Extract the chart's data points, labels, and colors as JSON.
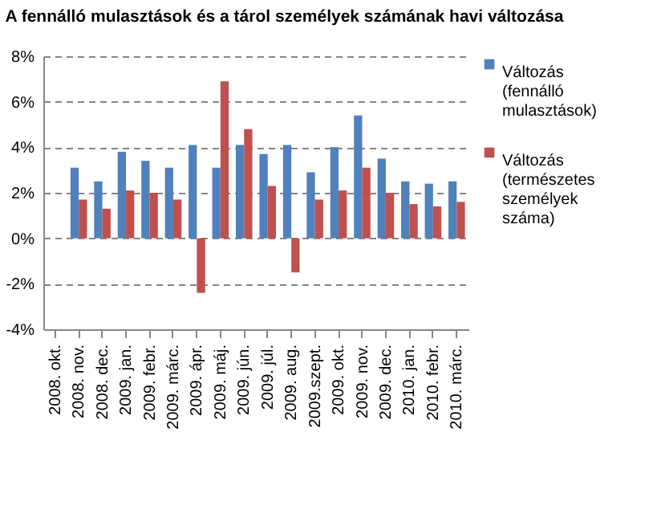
{
  "chart_data": {
    "type": "bar",
    "title": "A fennálló mulasztások és a tárol személyek számának havi változása",
    "categories": [
      "2008. okt.",
      "2008. nov.",
      "2008. dec.",
      "2009. jan.",
      "2009. febr.",
      "2009. márc.",
      "2009. ápr.",
      "2009. máj.",
      "2009. jún.",
      "2009. júl.",
      "2009. aug.",
      "2009.szept.",
      "2009. okt.",
      "2009. nov.",
      "2009. dec.",
      "2010. jan.",
      "2010. febr.",
      "2010. márc."
    ],
    "series": [
      {
        "name": "Változás (fennálló mulasztások)",
        "color": "#4f81bd",
        "values": [
          null,
          3.1,
          2.5,
          3.8,
          3.4,
          3.1,
          4.1,
          3.1,
          4.1,
          3.7,
          4.1,
          2.9,
          4.0,
          5.4,
          3.5,
          2.5,
          2.4,
          2.5
        ]
      },
      {
        "name": "Változás (természetes személyek száma)",
        "color": "#c0504d",
        "values": [
          null,
          1.7,
          1.3,
          2.1,
          2.0,
          1.7,
          -2.4,
          6.9,
          4.8,
          2.3,
          -1.5,
          1.7,
          2.1,
          3.1,
          2.0,
          1.5,
          1.4,
          1.6
        ]
      }
    ],
    "ylim": [
      -4,
      8
    ],
    "yticks": [
      {
        "value": -4,
        "label": "-4%"
      },
      {
        "value": -2,
        "label": "-2%"
      },
      {
        "value": 0,
        "label": "0%"
      },
      {
        "value": 2,
        "label": "2%"
      },
      {
        "value": 4,
        "label": "4%"
      },
      {
        "value": 6,
        "label": "6%"
      },
      {
        "value": 8,
        "label": "8%"
      }
    ],
    "grid": "y",
    "legend": "right"
  }
}
